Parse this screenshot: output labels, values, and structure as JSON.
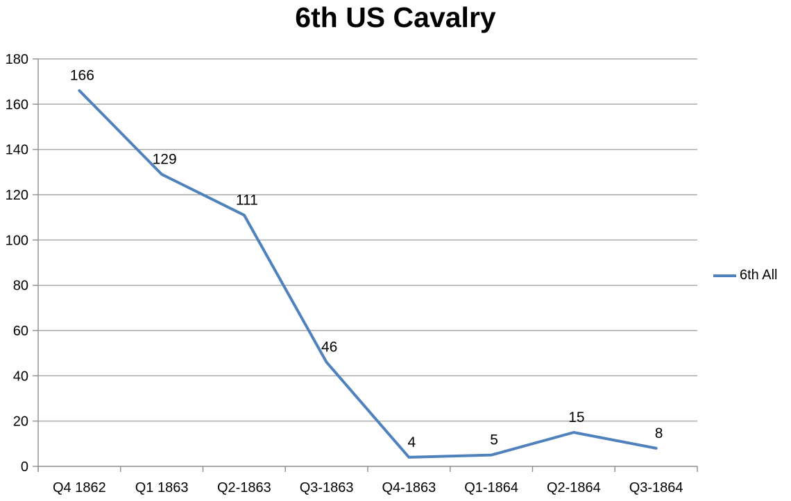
{
  "chart_data": {
    "type": "line",
    "title": "6th US Cavalry",
    "categories": [
      "Q4 1862",
      "Q1 1863",
      "Q2-1863",
      "Q3-1863",
      "Q4-1863",
      "Q1-1864",
      "Q2-1864",
      "Q3-1864"
    ],
    "series": [
      {
        "name": "6th All",
        "values": [
          166,
          129,
          111,
          46,
          4,
          5,
          15,
          8
        ]
      }
    ],
    "xlabel": "",
    "ylabel": "",
    "ylim": [
      0,
      180
    ],
    "ytick_step": 20,
    "yticks": [
      0,
      20,
      40,
      60,
      80,
      100,
      120,
      140,
      160,
      180
    ],
    "grid": true,
    "data_labels": true,
    "legend_position": "right",
    "colors": {
      "line": "#4F81BD",
      "gridline": "#A6A6A6",
      "axis": "#8C8C8C",
      "text": "#000000"
    }
  }
}
